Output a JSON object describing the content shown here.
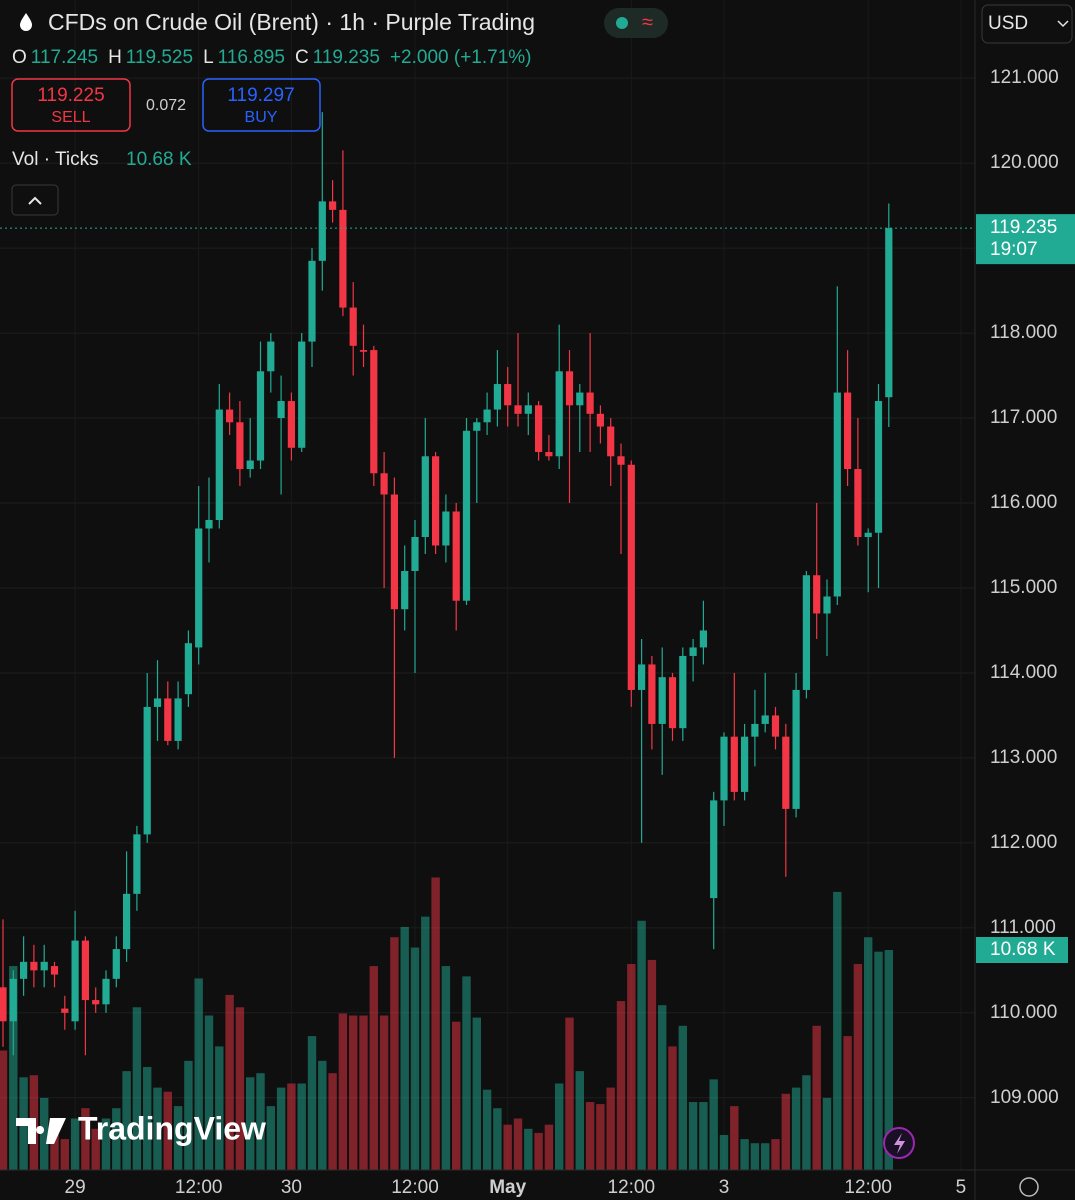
{
  "header": {
    "title": "CFDs on Crude Oil (Brent) · 1h · Purple Trading",
    "ohlc": [
      {
        "label": "O",
        "value": "117.245"
      },
      {
        "label": "H",
        "value": "119.525"
      },
      {
        "label": "L",
        "value": "116.895"
      },
      {
        "label": "C",
        "value": "119.235"
      }
    ],
    "change": "+2.000 (+1.71%)",
    "sell": {
      "price": "119.225",
      "label": "SELL"
    },
    "spread": "0.072",
    "buy": {
      "price": "119.297",
      "label": "BUY"
    },
    "volume_legend": {
      "label": "Vol · Ticks",
      "value": "10.68 K"
    },
    "currency": "USD",
    "logo": "TradingView"
  },
  "chart_data": {
    "type": "candlestick",
    "up_color": "#22ab94",
    "down_color": "#f23645",
    "ylim": [
      108.15,
      121.92
    ],
    "yticks": [
      {
        "value": 109,
        "label": "109.000"
      },
      {
        "value": 110,
        "label": "110.000"
      },
      {
        "value": 111,
        "label": "111.000"
      },
      {
        "value": 112,
        "label": "112.000"
      },
      {
        "value": 113,
        "label": "113.000"
      },
      {
        "value": 114,
        "label": "114.000"
      },
      {
        "value": 115,
        "label": "115.000"
      },
      {
        "value": 116,
        "label": "116.000"
      },
      {
        "value": 117,
        "label": "117.000"
      },
      {
        "value": 118,
        "label": "118.000"
      },
      {
        "value": 119,
        "label": "119.000"
      },
      {
        "value": 120,
        "label": "120.000"
      },
      {
        "value": 121,
        "label": "121.000"
      }
    ],
    "volume_lim": [
      0,
      56.8
    ],
    "grid": true,
    "last_price_label": "119.235",
    "countdown": "19:07",
    "last_volume_label": "10.68 K",
    "categories": [
      null,
      null,
      null,
      null,
      null,
      null,
      null,
      "29",
      null,
      null,
      null,
      null,
      null,
      null,
      null,
      null,
      null,
      null,
      null,
      "12:00",
      null,
      null,
      null,
      null,
      null,
      null,
      null,
      null,
      "30",
      null,
      null,
      null,
      null,
      null,
      null,
      null,
      null,
      null,
      null,
      null,
      "12:00",
      null,
      null,
      null,
      null,
      null,
      null,
      null,
      null,
      "May",
      null,
      null,
      null,
      null,
      null,
      null,
      null,
      null,
      null,
      null,
      null,
      "12:00",
      null,
      null,
      null,
      null,
      null,
      null,
      null,
      null,
      "3",
      null,
      null,
      null,
      null,
      null,
      null,
      null,
      null,
      null,
      null,
      null,
      null,
      null,
      "12:00",
      null,
      null,
      null,
      null,
      null,
      null,
      null,
      null,
      "5"
    ],
    "open": [
      110.3,
      109.9,
      110.4,
      110.6,
      110.5,
      110.55,
      110.05,
      109.9,
      110.85,
      110.15,
      110.1,
      110.4,
      110.75,
      111.4,
      112.1,
      113.6,
      113.7,
      113.2,
      113.75,
      114.3,
      115.7,
      115.8,
      117.1,
      116.95,
      116.4,
      116.5,
      117.55,
      117.0,
      117.2,
      116.65,
      117.9,
      118.85,
      119.55,
      119.45,
      118.3,
      117.8,
      117.8,
      116.35,
      116.1,
      114.75,
      115.2,
      115.6,
      116.55,
      115.5,
      115.9,
      114.85,
      116.85,
      116.95,
      117.1,
      117.4,
      117.15,
      117.05,
      117.15,
      116.6,
      116.55,
      117.55,
      117.15,
      117.3,
      117.05,
      116.9,
      116.55,
      116.45,
      113.8,
      114.1,
      113.4,
      113.95,
      113.35,
      114.2,
      114.3,
      111.35,
      112.5,
      113.25,
      112.6,
      113.25,
      113.4,
      113.5,
      113.25,
      112.4,
      113.8,
      115.15,
      114.7,
      114.9,
      117.3,
      116.4,
      115.6,
      115.65,
      117.245,
      null,
      null,
      null,
      null,
      null,
      null,
      null
    ],
    "high": [
      111.1,
      110.5,
      110.9,
      110.8,
      110.8,
      110.6,
      110.2,
      111.2,
      110.9,
      110.3,
      110.5,
      110.9,
      111.9,
      112.2,
      114.0,
      114.15,
      113.9,
      113.9,
      114.5,
      116.2,
      116.3,
      117.4,
      117.3,
      117.2,
      117.0,
      117.9,
      118.0,
      117.5,
      117.3,
      118.0,
      119.0,
      120.6,
      119.8,
      120.15,
      118.6,
      118.1,
      117.85,
      116.6,
      116.3,
      115.5,
      115.8,
      117.0,
      116.6,
      116.1,
      116.0,
      117.0,
      117.0,
      117.3,
      117.8,
      117.6,
      118.0,
      117.3,
      117.2,
      116.8,
      118.1,
      117.8,
      117.4,
      118.0,
      117.15,
      117.0,
      116.7,
      116.5,
      114.4,
      114.2,
      114.3,
      114.0,
      114.3,
      114.4,
      114.85,
      112.6,
      113.3,
      114.0,
      113.4,
      113.8,
      114.0,
      113.6,
      113.4,
      114.0,
      115.2,
      116.0,
      115.1,
      118.55,
      117.8,
      117.0,
      115.7,
      117.4,
      119.525,
      null,
      null,
      null,
      null,
      null,
      null,
      null
    ],
    "low": [
      109.6,
      109.5,
      110.2,
      110.3,
      110.3,
      110.3,
      109.8,
      109.8,
      109.5,
      110.0,
      110.0,
      110.3,
      110.6,
      111.2,
      112.0,
      113.2,
      113.15,
      113.1,
      113.6,
      114.1,
      115.3,
      115.7,
      116.8,
      116.2,
      116.3,
      116.4,
      117.3,
      116.1,
      116.5,
      116.6,
      117.6,
      118.5,
      119.3,
      118.2,
      117.5,
      117.6,
      116.2,
      115.0,
      113.0,
      114.5,
      114.0,
      115.4,
      115.4,
      115.3,
      114.5,
      114.8,
      116.0,
      116.8,
      116.9,
      116.9,
      116.9,
      116.8,
      116.5,
      116.5,
      116.4,
      116.0,
      116.6,
      116.6,
      116.7,
      116.2,
      115.4,
      113.6,
      112.0,
      113.1,
      112.8,
      113.2,
      113.2,
      113.9,
      114.1,
      110.75,
      112.2,
      112.5,
      112.5,
      112.9,
      113.3,
      113.1,
      111.6,
      112.3,
      113.7,
      114.4,
      114.2,
      114.8,
      116.2,
      115.5,
      114.95,
      115.0,
      116.895,
      null,
      null,
      null,
      null,
      null,
      null,
      null
    ],
    "close": [
      109.9,
      110.4,
      110.6,
      110.5,
      110.6,
      110.45,
      110.0,
      110.85,
      110.15,
      110.1,
      110.4,
      110.75,
      111.4,
      112.1,
      113.6,
      113.7,
      113.2,
      113.7,
      114.35,
      115.7,
      115.8,
      117.1,
      116.95,
      116.4,
      116.5,
      117.55,
      117.9,
      117.2,
      116.65,
      117.9,
      118.85,
      119.55,
      119.45,
      118.3,
      117.85,
      117.78,
      116.35,
      116.1,
      114.75,
      115.2,
      115.6,
      116.55,
      115.5,
      115.9,
      114.85,
      116.85,
      116.95,
      117.1,
      117.4,
      117.15,
      117.05,
      117.15,
      116.6,
      116.55,
      117.55,
      117.15,
      117.3,
      117.05,
      116.9,
      116.55,
      116.45,
      113.8,
      114.1,
      113.4,
      113.95,
      113.35,
      114.2,
      114.3,
      114.5,
      112.5,
      113.25,
      112.6,
      113.25,
      113.4,
      113.5,
      113.25,
      112.4,
      113.8,
      115.15,
      114.7,
      114.9,
      117.3,
      116.4,
      115.6,
      115.65,
      117.2,
      119.235,
      null,
      null,
      null,
      null,
      null,
      null,
      null
    ],
    "volume": [
      5.8,
      9.9,
      4.5,
      4.6,
      3.5,
      2.5,
      1.5,
      2.5,
      3.0,
      2.0,
      2.5,
      3.0,
      4.8,
      7.9,
      5.0,
      4.0,
      3.8,
      3.1,
      5.3,
      9.3,
      7.5,
      6.0,
      8.5,
      7.9,
      4.5,
      4.7,
      3.1,
      4.0,
      4.2,
      4.2,
      6.5,
      5.3,
      4.7,
      7.6,
      7.5,
      7.5,
      9.9,
      7.5,
      11.3,
      11.8,
      10.8,
      12.3,
      14.2,
      9.9,
      7.2,
      9.4,
      7.4,
      3.9,
      3.0,
      2.2,
      2.5,
      2.0,
      1.8,
      2.2,
      4.2,
      7.4,
      4.8,
      3.3,
      3.2,
      4.0,
      8.2,
      10.0,
      12.1,
      10.2,
      8.0,
      6.0,
      7.0,
      3.3,
      3.3,
      4.4,
      1.7,
      3.1,
      1.5,
      1.3,
      1.3,
      1.5,
      3.7,
      4.0,
      4.6,
      7.0,
      3.5,
      13.5,
      6.5,
      10.0,
      11.3,
      10.6,
      10.68,
      null,
      null,
      null,
      null,
      null,
      null,
      null
    ]
  }
}
